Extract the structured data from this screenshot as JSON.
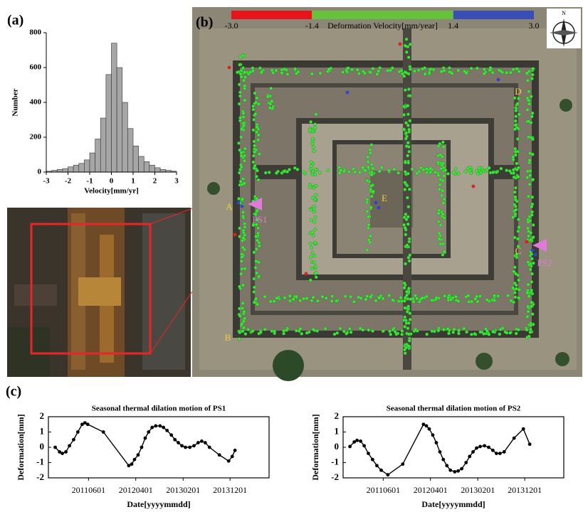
{
  "panels": {
    "a": "(a)",
    "b": "(b)",
    "c": "(c)"
  },
  "chart_data": [
    {
      "type": "histogram",
      "xlabel": "Velocity[mm/yr]",
      "ylabel": "Number",
      "bins": [
        -3,
        -2.75,
        -2.5,
        -2.25,
        -2,
        -1.75,
        -1.5,
        -1.25,
        -1,
        -0.75,
        -0.5,
        -0.25,
        0,
        0.25,
        0.5,
        0.75,
        1,
        1.25,
        1.5,
        1.75,
        2,
        2.25,
        2.5,
        2.75,
        3
      ],
      "values": [
        5,
        10,
        15,
        20,
        30,
        40,
        50,
        70,
        110,
        190,
        310,
        560,
        740,
        600,
        400,
        250,
        150,
        90,
        60,
        40,
        25,
        15,
        10,
        5
      ],
      "color": "#a6a6a6",
      "xlim": [
        -3,
        3
      ],
      "xticks": [
        -3,
        -2,
        -1,
        0,
        1,
        2,
        3
      ],
      "ylim": [
        0,
        800
      ],
      "yticks": [
        0,
        200,
        400,
        600,
        800
      ]
    },
    {
      "type": "line",
      "title": "Seasonal thermal dilation motion of PS1",
      "xlabel": "Date[yyyymmdd]",
      "ylabel": "Deformation[mm]",
      "x": [
        "20101029",
        "20101126",
        "20101214",
        "20110106",
        "20110129",
        "20110225",
        "20110324",
        "20110421",
        "20110509",
        "20110527",
        "20110905",
        "20120216",
        "20120306",
        "20120324",
        "20120416",
        "20120509",
        "20120601",
        "20120623",
        "20120716",
        "20120808",
        "20120905",
        "20120927",
        "20121020",
        "20121117",
        "20121210",
        "20130101",
        "20130124",
        "20130216",
        "20130316",
        "20130412",
        "20130509",
        "20130601",
        "20130624",
        "20130721",
        "20130923",
        "20131122",
        "20131215",
        "20140102"
      ],
      "values": [
        0,
        -0.3,
        -0.4,
        -0.3,
        0.1,
        0.5,
        1.0,
        1.5,
        1.6,
        1.5,
        1.0,
        -1.2,
        -1.1,
        -0.8,
        -0.5,
        0,
        0.6,
        1.0,
        1.3,
        1.4,
        1.4,
        1.3,
        1.1,
        0.8,
        0.5,
        0.3,
        0.1,
        0,
        0,
        0.1,
        0.3,
        0.4,
        0.3,
        0,
        -0.5,
        -0.9,
        -0.6,
        -0.2
      ],
      "color": "#000000",
      "xlim": [
        "20100915",
        "20140810"
      ],
      "xticks": [
        "20110601",
        "20120401",
        "20130201",
        "20131201"
      ],
      "ylim": [
        -2,
        2
      ],
      "yticks": [
        -2,
        -1,
        0,
        1,
        2
      ]
    },
    {
      "type": "line",
      "title": "Seasonal thermal dilation motion of PS2",
      "xlabel": "Date[yyyymmdd]",
      "ylabel": "Deformation[mm]",
      "x": [
        "20101029",
        "20101126",
        "20101214",
        "20110106",
        "20110129",
        "20110225",
        "20110324",
        "20110421",
        "20110519",
        "20110701",
        "20111005",
        "20120216",
        "20120306",
        "20120324",
        "20120416",
        "20120509",
        "20120601",
        "20120623",
        "20120716",
        "20120808",
        "20120905",
        "20120927",
        "20121020",
        "20121117",
        "20121210",
        "20130101",
        "20130124",
        "20130216",
        "20130316",
        "20130412",
        "20130509",
        "20130601",
        "20130624",
        "20130721",
        "20130923",
        "20131122",
        "20140102"
      ],
      "values": [
        0.05,
        0.35,
        0.45,
        0.4,
        0.1,
        -0.4,
        -0.8,
        -1.2,
        -1.5,
        -1.8,
        -1.1,
        1.5,
        1.4,
        1.2,
        0.8,
        0.3,
        -0.3,
        -0.8,
        -1.2,
        -1.5,
        -1.6,
        -1.55,
        -1.4,
        -1.0,
        -0.6,
        -0.3,
        -0.05,
        0.05,
        0.1,
        0,
        -0.2,
        -0.4,
        -0.4,
        -0.3,
        0.6,
        1.2,
        0.2
      ],
      "color": "#000000",
      "xlim": [
        "20100915",
        "20140810"
      ],
      "xticks": [
        "20110601",
        "20120401",
        "20130201",
        "20131201"
      ],
      "ylim": [
        -2,
        2
      ],
      "yticks": [
        -2,
        -1,
        0,
        1,
        2
      ]
    }
  ],
  "colorbar": {
    "title": "Deformation Velocity[mm/year]",
    "ticks": [
      {
        "value": -3,
        "label": "-3.0"
      },
      -1.4,
      1.4,
      {
        "value": 3,
        "label": "3.0"
      }
    ],
    "colors": [
      "#e8141c",
      "#66c23a",
      "#3a4db4"
    ]
  },
  "map": {
    "labels": [
      "A",
      "B",
      "C",
      "D",
      "E"
    ],
    "points": [
      "PS1",
      "PS2"
    ],
    "compass": "N"
  }
}
